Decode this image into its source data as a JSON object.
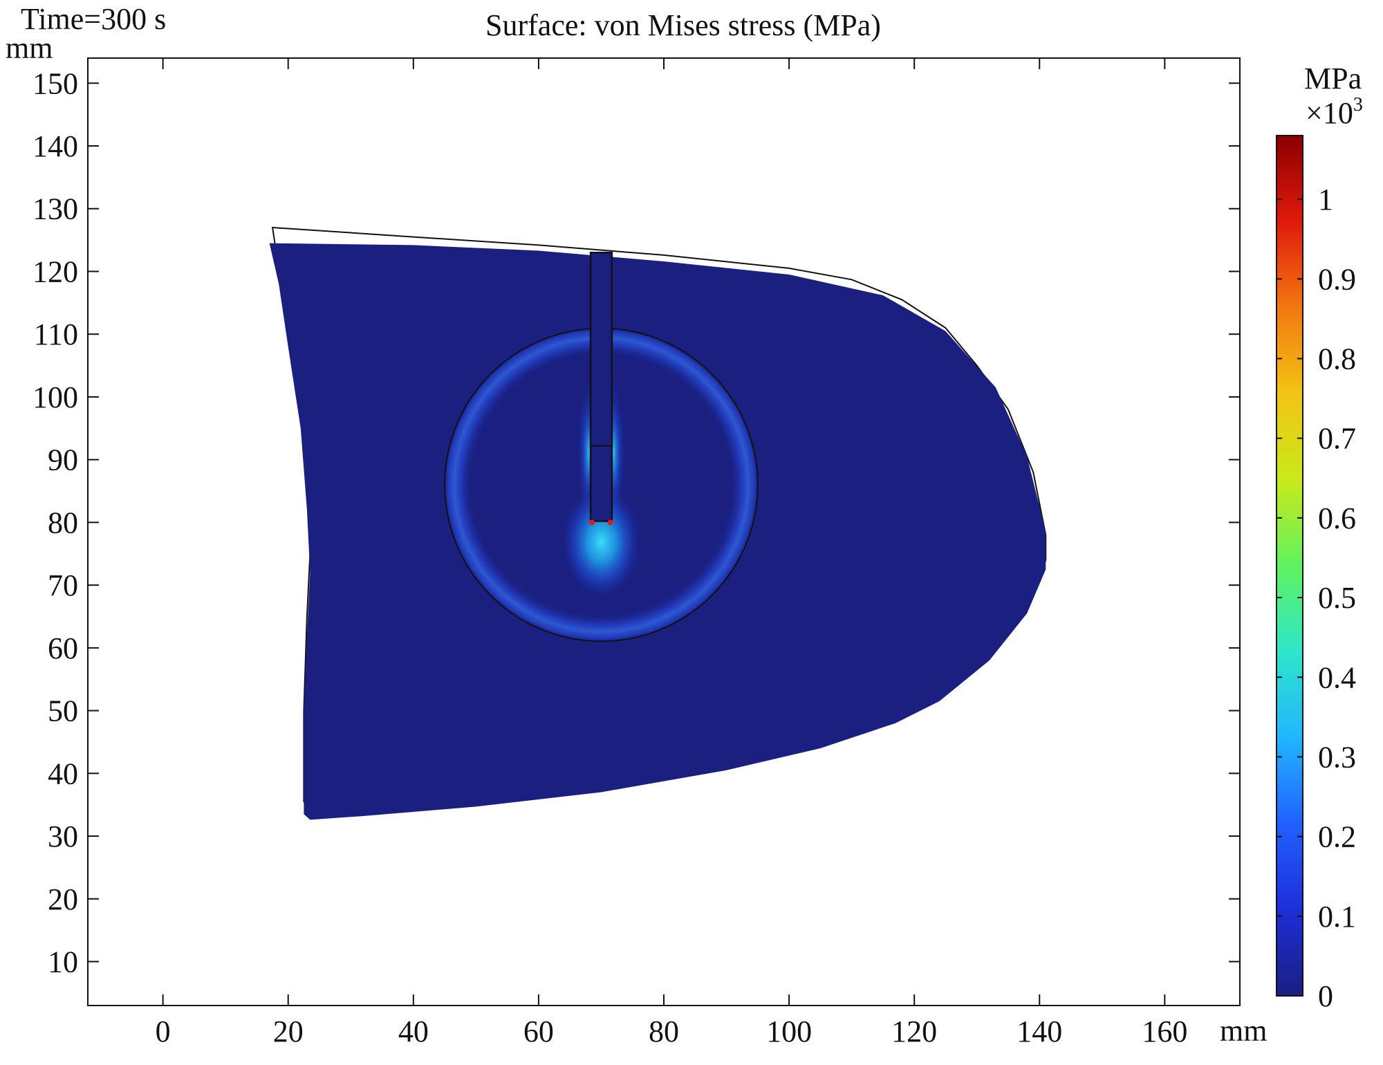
{
  "chart_data": {
    "type": "heatmap",
    "time_label": "Time=300 s",
    "title": "Surface: von Mises stress (MPa)",
    "x_axis": {
      "unit": "mm",
      "range": [
        -12,
        172
      ],
      "ticks": [
        0,
        20,
        40,
        60,
        80,
        100,
        120,
        140,
        160
      ],
      "tick_labels": [
        "0",
        "20",
        "40",
        "60",
        "80",
        "100",
        "120",
        "140",
        "160"
      ]
    },
    "y_axis": {
      "unit": "mm",
      "range": [
        3,
        154
      ],
      "ticks": [
        10,
        20,
        30,
        40,
        50,
        60,
        70,
        80,
        90,
        100,
        110,
        120,
        130,
        140,
        150
      ],
      "tick_labels": [
        "10",
        "20",
        "30",
        "40",
        "50",
        "60",
        "70",
        "80",
        "90",
        "100",
        "110",
        "120",
        "130",
        "140",
        "150"
      ]
    },
    "colorbar": {
      "unit": "MPa",
      "multiplier_base": "×10",
      "multiplier_exp": "3",
      "range": [
        0,
        1.08
      ],
      "ticks": [
        0,
        0.1,
        0.2,
        0.3,
        0.4,
        0.5,
        0.6,
        0.7,
        0.8,
        0.9,
        1
      ],
      "tick_labels": [
        "0",
        "0.1",
        "0.2",
        "0.3",
        "0.4",
        "0.5",
        "0.6",
        "0.7",
        "0.8",
        "0.9",
        "1"
      ],
      "colormap": [
        "#1a1f80",
        "#1e2ed8",
        "#2160ff",
        "#21b6ff",
        "#2ee6c8",
        "#5ff25f",
        "#c9ea1a",
        "#f2c414",
        "#f2780f",
        "#e01a0c",
        "#8c0000"
      ]
    },
    "deformed_shape": {
      "outline": [
        [
          17,
          124.5
        ],
        [
          40,
          124.2
        ],
        [
          60,
          123.3
        ],
        [
          80,
          121.6
        ],
        [
          100,
          119.5
        ],
        [
          115,
          116.2
        ],
        [
          125,
          110.5
        ],
        [
          133,
          101.5
        ],
        [
          138,
          90.5
        ],
        [
          141,
          78.5
        ],
        [
          141,
          72.5
        ],
        [
          138,
          65.5
        ],
        [
          132,
          58
        ],
        [
          124,
          51.5
        ],
        [
          117,
          48
        ],
        [
          105,
          44
        ],
        [
          90,
          40.5
        ],
        [
          70,
          37
        ],
        [
          50,
          34.7
        ],
        [
          32,
          33.2
        ],
        [
          23.5,
          32.6
        ],
        [
          22.5,
          33.5
        ],
        [
          22.5,
          50
        ],
        [
          23,
          62
        ],
        [
          23.5,
          72
        ],
        [
          23,
          82
        ],
        [
          22,
          95
        ],
        [
          20,
          108
        ],
        [
          18.5,
          118
        ],
        [
          17,
          124.5
        ]
      ],
      "base_color": "#1a1f80"
    },
    "undeformed_shape": {
      "outline": [
        [
          17.5,
          127
        ],
        [
          40,
          125.5
        ],
        [
          60,
          124.2
        ],
        [
          80,
          122.6
        ],
        [
          100,
          120.5
        ],
        [
          110,
          118.7
        ],
        [
          118,
          115.5
        ],
        [
          125,
          111
        ],
        [
          130,
          105
        ],
        [
          135,
          98
        ],
        [
          139,
          88
        ],
        [
          141,
          78
        ],
        [
          141,
          74
        ],
        [
          139,
          68.5
        ],
        [
          133,
          61.5
        ],
        [
          126,
          55.5
        ],
        [
          120,
          51.5
        ],
        [
          112,
          48.5
        ],
        [
          100,
          45.5
        ],
        [
          85,
          42.5
        ],
        [
          70,
          40
        ],
        [
          50,
          38
        ],
        [
          35,
          36.5
        ],
        [
          22.5,
          35.5
        ],
        [
          22.5,
          50
        ],
        [
          23,
          65
        ],
        [
          23.5,
          75
        ],
        [
          23,
          85
        ],
        [
          22,
          97
        ],
        [
          20.5,
          108
        ],
        [
          19,
          117
        ],
        [
          17.5,
          127
        ]
      ],
      "color": "#ffffff"
    },
    "circle_boundary": {
      "center": [
        70,
        86
      ],
      "radius": 25
    },
    "slot": {
      "x_range": [
        68.3,
        71.7
      ],
      "y_range": [
        80.2,
        123
      ],
      "divider_y": 92.2
    },
    "stress_features": [
      {
        "location": "slot tip corners",
        "x": [
          68.5,
          71.5
        ],
        "y": 80,
        "value": 1.0
      },
      {
        "location": "slot tip region",
        "x": 70,
        "y": 76,
        "value": 0.35
      },
      {
        "location": "circle interface ring",
        "value": 0.15
      },
      {
        "location": "bulk material",
        "value": 0.02
      }
    ]
  }
}
